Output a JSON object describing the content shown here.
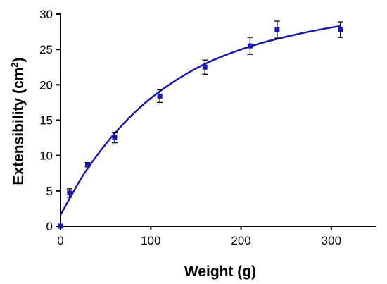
{
  "chart_data": {
    "type": "scatter",
    "title": "",
    "xlabel": "Weight (g)",
    "ylabel": {
      "main": "Extensibility (cm",
      "sup": "2",
      "close": ")"
    },
    "xlim": [
      0,
      350
    ],
    "ylim": [
      0,
      30
    ],
    "xticks": [
      0,
      100,
      200,
      300
    ],
    "yticks": [
      0,
      5,
      10,
      15,
      20,
      25,
      30
    ],
    "grid": false,
    "legend": "none",
    "colors": {
      "series": "#1a1aa6",
      "errorbar": "#000000"
    },
    "points": [
      {
        "x": 0,
        "y": 0,
        "err": 0
      },
      {
        "x": 10,
        "y": 4.7,
        "err": 0.6
      },
      {
        "x": 30,
        "y": 8.7,
        "err": 0.3
      },
      {
        "x": 60,
        "y": 12.5,
        "err": 0.7
      },
      {
        "x": 110,
        "y": 18.4,
        "err": 0.9
      },
      {
        "x": 160,
        "y": 22.5,
        "err": 1.0
      },
      {
        "x": 210,
        "y": 25.5,
        "err": 1.2
      },
      {
        "x": 240,
        "y": 27.8,
        "err": 1.2
      },
      {
        "x": 310,
        "y": 27.8,
        "err": 1.1
      }
    ],
    "fit_curve": [
      {
        "x": 0,
        "y": 1.6
      },
      {
        "x": 25,
        "y": 7.2
      },
      {
        "x": 50,
        "y": 11.6
      },
      {
        "x": 75,
        "y": 15.2
      },
      {
        "x": 100,
        "y": 18.1
      },
      {
        "x": 125,
        "y": 20.4
      },
      {
        "x": 150,
        "y": 22.3
      },
      {
        "x": 175,
        "y": 23.8
      },
      {
        "x": 200,
        "y": 25.0
      },
      {
        "x": 225,
        "y": 26.0
      },
      {
        "x": 250,
        "y": 26.8
      },
      {
        "x": 275,
        "y": 27.5
      },
      {
        "x": 300,
        "y": 28.1
      },
      {
        "x": 310,
        "y": 28.3
      }
    ]
  }
}
